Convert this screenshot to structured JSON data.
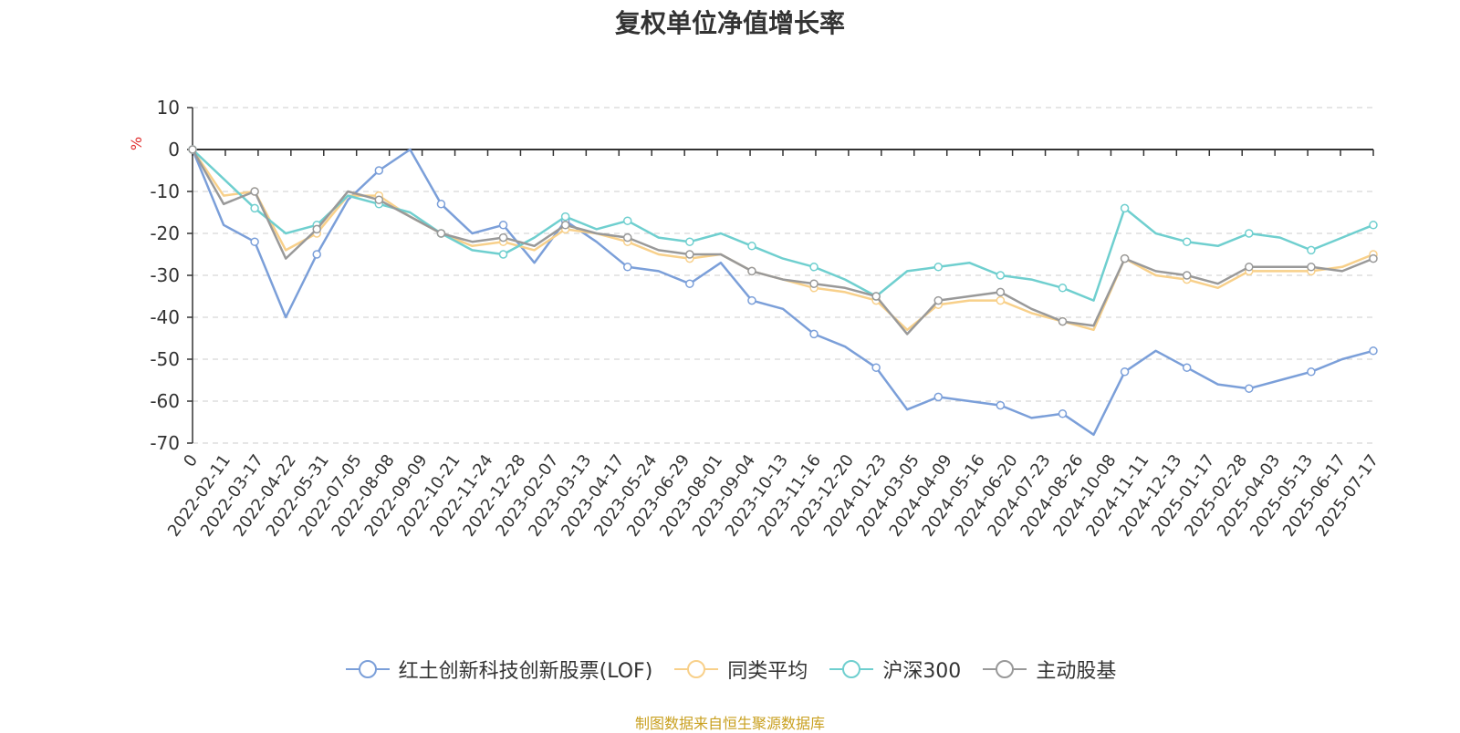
{
  "chart_data": {
    "type": "line",
    "title": "复权单位净值增长率",
    "ylabel": "%",
    "ylim": [
      -70,
      10
    ],
    "yticks": [
      10,
      0,
      -10,
      -20,
      -30,
      -40,
      -50,
      -60,
      -70
    ],
    "grid": "horizontal dashed",
    "legend_position": "bottom",
    "x_tick_labels": [
      "0",
      "2022-02-11",
      "2022-03-17",
      "2022-04-22",
      "2022-05-31",
      "2022-07-05",
      "2022-08-08",
      "2022-09-09",
      "2022-10-21",
      "2022-11-24",
      "2022-12-28",
      "2023-02-07",
      "2023-03-13",
      "2023-04-17",
      "2023-05-24",
      "2023-06-29",
      "2023-08-01",
      "2023-09-04",
      "2023-10-13",
      "2023-11-16",
      "2023-12-20",
      "2024-01-23",
      "2024-03-05",
      "2024-04-09",
      "2024-05-16",
      "2024-06-20",
      "2024-07-23",
      "2024-08-26",
      "2024-10-08",
      "2024-11-11",
      "2024-12-13",
      "2025-01-17",
      "2025-02-28",
      "2025-04-03",
      "2025-05-13",
      "2025-06-17",
      "2025-07-17"
    ],
    "series": [
      {
        "name": "红土创新科技创新股票(LOF)",
        "color": "#7b9fd9",
        "values": [
          0,
          -18,
          -22,
          -40,
          -25,
          -12,
          -5,
          0,
          -13,
          -20,
          -18,
          -27,
          -17,
          -22,
          -28,
          -29,
          -32,
          -27,
          -36,
          -38,
          -44,
          -47,
          -52,
          -62,
          -59,
          -60,
          -61,
          -64,
          -63,
          -68,
          -53,
          -48,
          -52,
          -56,
          -57,
          -55,
          -53,
          -50,
          -48
        ]
      },
      {
        "name": "同类平均",
        "color": "#f8d08a",
        "values": [
          0,
          -11,
          -10,
          -24,
          -20,
          -11,
          -11,
          -16,
          -20,
          -23,
          -22,
          -24,
          -19,
          -20,
          -22,
          -25,
          -26,
          -25,
          -29,
          -31,
          -33,
          -34,
          -36,
          -43,
          -37,
          -36,
          -36,
          -39,
          -41,
          -43,
          -26,
          -30,
          -31,
          -33,
          -29,
          -29,
          -29,
          -28,
          -25
        ]
      },
      {
        "name": "沪深300",
        "color": "#6fcfcf",
        "values": [
          0,
          -7,
          -14,
          -20,
          -18,
          -11,
          -13,
          -15,
          -20,
          -24,
          -25,
          -21,
          -16,
          -19,
          -17,
          -21,
          -22,
          -20,
          -23,
          -26,
          -28,
          -31,
          -35,
          -29,
          -28,
          -27,
          -30,
          -31,
          -33,
          -36,
          -14,
          -20,
          -22,
          -23,
          -20,
          -21,
          -24,
          -21,
          -18
        ]
      },
      {
        "name": "主动股基",
        "color": "#999999",
        "values": [
          0,
          -13,
          -10,
          -26,
          -19,
          -10,
          -12,
          -16,
          -20,
          -22,
          -21,
          -23,
          -18,
          -20,
          -21,
          -24,
          -25,
          -25,
          -29,
          -31,
          -32,
          -33,
          -35,
          -44,
          -36,
          -35,
          -34,
          -38,
          -41,
          -42,
          -26,
          -29,
          -30,
          -32,
          -28,
          -28,
          -28,
          -29,
          -26
        ]
      }
    ]
  },
  "source_note": "制图数据来自恒生聚源数据库"
}
